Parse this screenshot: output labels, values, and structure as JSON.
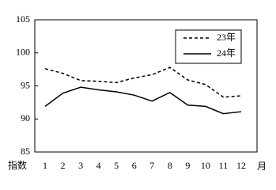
{
  "chart_data": {
    "type": "line",
    "x_label": "月",
    "y_label": "指数",
    "categories": [
      "1",
      "2",
      "3",
      "4",
      "5",
      "6",
      "7",
      "8",
      "9",
      "10",
      "11",
      "12"
    ],
    "series": [
      {
        "name": "23年",
        "color": "#000000",
        "linestyle": "dashed",
        "values": [
          97.6,
          96.9,
          95.8,
          95.7,
          95.5,
          96.2,
          96.7,
          97.8,
          95.9,
          95.2,
          93.3,
          93.5
        ]
      },
      {
        "name": "24年",
        "color": "#000000",
        "linestyle": "solid",
        "values": [
          91.9,
          93.9,
          94.8,
          94.4,
          94.1,
          93.6,
          92.7,
          94.0,
          92.1,
          91.9,
          90.8,
          91.1
        ]
      }
    ],
    "ylim": [
      85,
      105
    ],
    "yticks": [
      85,
      90,
      95,
      100,
      105
    ],
    "grid": false,
    "legend": "upper right"
  }
}
